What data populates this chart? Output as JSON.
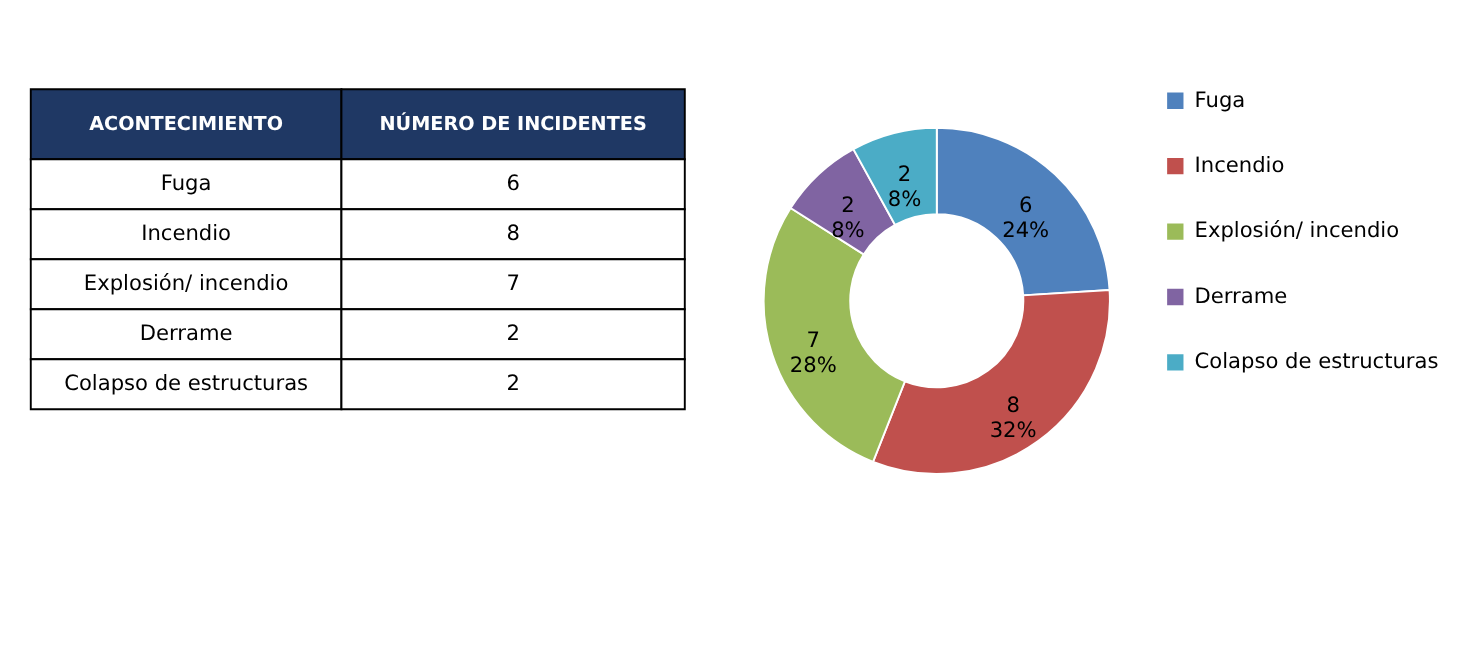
{
  "chart_data": [
    {
      "type": "other",
      "categories": [
        "Fuga",
        "Incendio",
        "Explosión/ incendio",
        "Derrame",
        "Colapso de estructuras"
      ],
      "values": [
        6,
        8,
        7,
        2,
        2
      ],
      "data_labels": true,
      "annotations": [
        "ACONTECIMIENTO",
        "NÚMERO DE INCIDENTES"
      ]
    },
    {
      "type": "donut",
      "categories": [
        "Fuga",
        "Incendio",
        "Explosión/ incendio",
        "Derrame",
        "Colapso de estructuras"
      ],
      "values": [
        6,
        8,
        7,
        2,
        2
      ],
      "colors": [
        "#4f81bd",
        "#c0504d",
        "#9bbb59",
        "#8064a2",
        "#4bacc6"
      ],
      "value_labels": [
        "6\n24%",
        "8\n32%",
        "7\n28%",
        "2\n8%",
        "2\n8%"
      ],
      "legend": "right"
    }
  ]
}
